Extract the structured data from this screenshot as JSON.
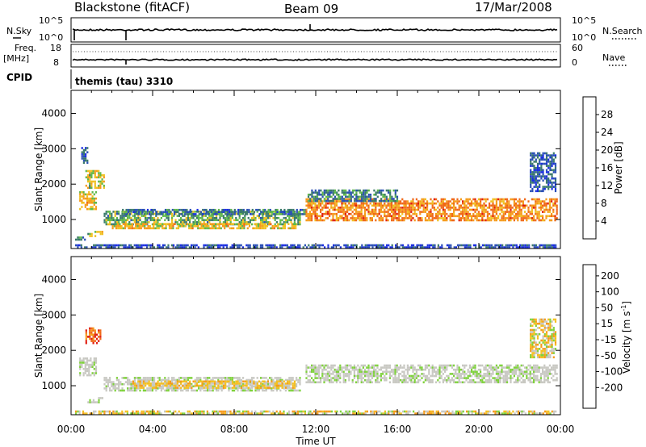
{
  "header": {
    "radar": "Blackstone (fitACF)",
    "beam": "Beam 09",
    "date": "17/Mar/2008"
  },
  "status_panels": {
    "nsky_label": "N.Sky",
    "nsky_ticks": [
      "10^5",
      "10^0"
    ],
    "nsearch_label": "N.Search",
    "nsearch_ticks": [
      "10^5",
      "10^0"
    ],
    "freq_label": "Freq.",
    "freq_unit": "[MHz]",
    "freq_ticks": [
      "18",
      "8"
    ],
    "nave_label": "Nave",
    "nave_ticks": [
      "60",
      "0"
    ],
    "cpid_label": "CPID",
    "cpid_value": "themis (tau) 3310"
  },
  "x_axis": {
    "label": "Time UT",
    "ticks": [
      "00:00",
      "04:00",
      "08:00",
      "12:00",
      "16:00",
      "20:00",
      "00:00"
    ],
    "range_hours": [
      0,
      24
    ]
  },
  "chart_data": [
    {
      "type": "heatmap",
      "quantity": "power",
      "ylabel": "Slant Range [km]",
      "ylim": [
        180,
        4650
      ],
      "yticks": [
        1000,
        2000,
        3000,
        4000
      ],
      "colorbar": {
        "label": "Power [dB]",
        "ticks": [
          "4",
          "8",
          "12",
          "16",
          "20",
          "24",
          "28"
        ],
        "range": [
          0,
          30
        ],
        "colors": [
          "#1a2ee0",
          "#2a4fb5",
          "#3a7a6a",
          "#5fb84a",
          "#f0c020",
          "#f59b1a",
          "#f06818",
          "#e01d10"
        ]
      },
      "echo_regions": [
        {
          "t": [
            0.2,
            0.7
          ],
          "r": [
            420,
            520
          ],
          "level": 10
        },
        {
          "t": [
            0.8,
            1.5
          ],
          "r": [
            560,
            680
          ],
          "level": 14
        },
        {
          "t": [
            0.4,
            1.2
          ],
          "r": [
            1300,
            1800
          ],
          "level": 18
        },
        {
          "t": [
            0.7,
            1.6
          ],
          "r": [
            1900,
            2400
          ],
          "level": 16
        },
        {
          "t": [
            0.5,
            0.8
          ],
          "r": [
            2600,
            3050
          ],
          "level": 6
        },
        {
          "t": [
            1.6,
            11.2
          ],
          "r": [
            850,
            1250
          ],
          "level": 12
        },
        {
          "t": [
            2.0,
            11.0
          ],
          "r": [
            750,
            900
          ],
          "level": 18
        },
        {
          "t": [
            2.5,
            11.5
          ],
          "r": [
            1150,
            1300
          ],
          "level": 8
        },
        {
          "t": [
            0.2,
            23.8
          ],
          "r": [
            200,
            300
          ],
          "level": 5
        },
        {
          "t": [
            11.5,
            23.8
          ],
          "r": [
            1000,
            1600
          ],
          "level": 22
        },
        {
          "t": [
            11.6,
            16.0
          ],
          "r": [
            1550,
            1850
          ],
          "level": 9
        },
        {
          "t": [
            22.5,
            23.8
          ],
          "r": [
            1800,
            2900
          ],
          "level": 6
        }
      ]
    },
    {
      "type": "heatmap",
      "quantity": "velocity",
      "ylabel": "Slant Range [km]",
      "ylim": [
        180,
        4650
      ],
      "yticks": [
        1000,
        2000,
        3000,
        4000
      ],
      "colorbar": {
        "label": "Velocity [m s",
        "label_exponent": "-1",
        "label_close": "]",
        "ticks": [
          "200",
          "100",
          "50",
          "15",
          "-15",
          "-50",
          "-100",
          "-200"
        ],
        "colors": [
          "#1b2f9e",
          "#2f7a4a",
          "#44a838",
          "#7fd23c",
          "#c8c8c2",
          "#f4c020",
          "#f59b1a",
          "#f06818",
          "#e01d10"
        ]
      },
      "echo_regions": [
        {
          "t": [
            0.4,
            1.2
          ],
          "r": [
            1300,
            1800
          ],
          "class": "ground"
        },
        {
          "t": [
            0.7,
            1.4
          ],
          "r": [
            2200,
            2650
          ],
          "class": "neg-100"
        },
        {
          "t": [
            1.6,
            11.2
          ],
          "r": [
            850,
            1250
          ],
          "class": "ground"
        },
        {
          "t": [
            3.0,
            11.0
          ],
          "r": [
            950,
            1150
          ],
          "class": "neg-50"
        },
        {
          "t": [
            0.8,
            1.5
          ],
          "r": [
            560,
            680
          ],
          "class": "ground"
        },
        {
          "t": [
            11.5,
            23.8
          ],
          "r": [
            1100,
            1600
          ],
          "class": "ground"
        },
        {
          "t": [
            0.2,
            23.8
          ],
          "r": [
            200,
            300
          ],
          "class": "neg-15"
        },
        {
          "t": [
            22.5,
            23.8
          ],
          "r": [
            1800,
            2900
          ],
          "class": "neg-15"
        }
      ]
    }
  ]
}
